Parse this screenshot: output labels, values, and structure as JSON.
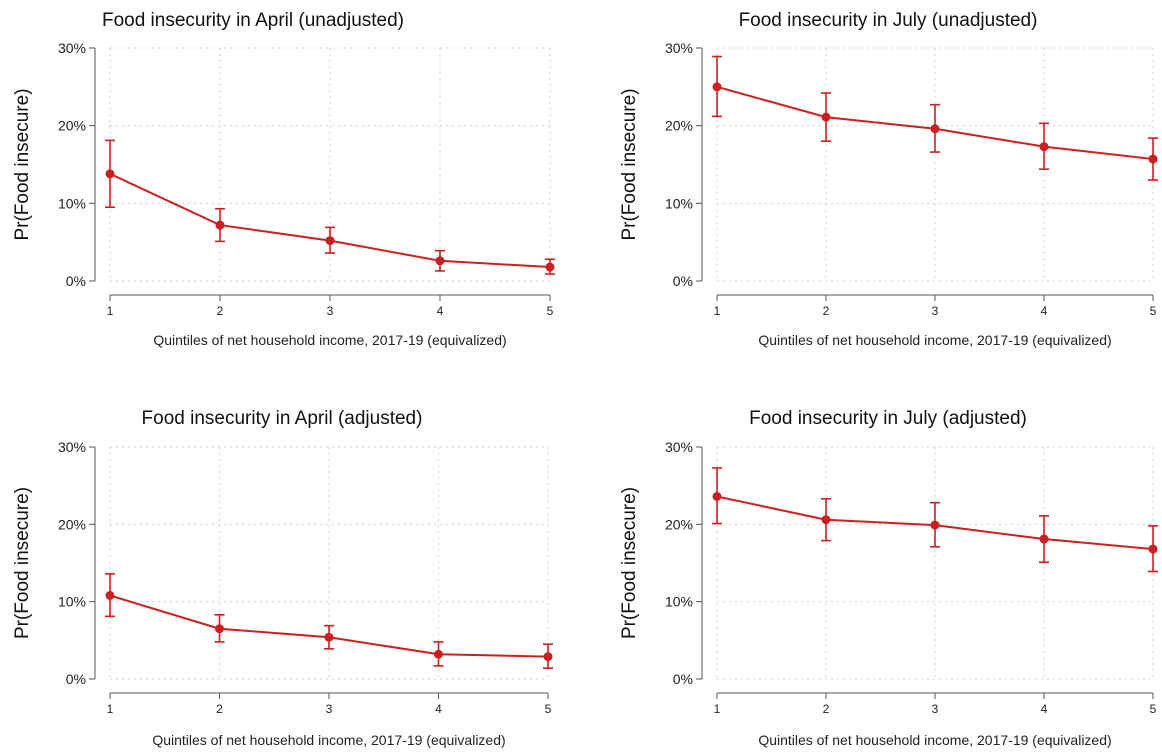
{
  "chart_data": [
    {
      "type": "line",
      "title": "Food insecurity in April (unadjusted)",
      "xlabel": "Quintiles of net household income, 2017-19 (equivalized)",
      "ylabel": "Pr(Food insecure)",
      "x": [
        1,
        2,
        3,
        4,
        5
      ],
      "x_tick_labels": [
        "1",
        "2",
        "3",
        "4",
        "5"
      ],
      "y_tick_values": [
        0,
        10,
        20,
        30
      ],
      "y_tick_labels": [
        "0%",
        "10%",
        "20%",
        "30%"
      ],
      "ylim": [
        0,
        30
      ],
      "grid": true,
      "series": [
        {
          "values": [
            13.8,
            7.2,
            5.2,
            2.6,
            1.8
          ],
          "ci_low": [
            9.5,
            5.1,
            3.6,
            1.3,
            0.9
          ],
          "ci_high": [
            18.1,
            9.3,
            6.9,
            3.9,
            2.8
          ]
        }
      ]
    },
    {
      "type": "line",
      "title": "Food insecurity in July (unadjusted)",
      "xlabel": "Quintiles of net household income, 2017-19 (equivalized)",
      "ylabel": "Pr(Food insecure)",
      "x": [
        1,
        2,
        3,
        4,
        5
      ],
      "x_tick_labels": [
        "1",
        "2",
        "3",
        "4",
        "5"
      ],
      "y_tick_values": [
        0,
        10,
        20,
        30
      ],
      "y_tick_labels": [
        "0%",
        "10%",
        "20%",
        "30%"
      ],
      "ylim": [
        0,
        30
      ],
      "grid": true,
      "series": [
        {
          "values": [
            25.0,
            21.1,
            19.6,
            17.3,
            15.7
          ],
          "ci_low": [
            21.2,
            18.0,
            16.6,
            14.4,
            13.0
          ],
          "ci_high": [
            28.9,
            24.2,
            22.7,
            20.3,
            18.4
          ]
        }
      ]
    },
    {
      "type": "line",
      "title": "Food insecurity in April (adjusted)",
      "xlabel": "Quintiles of net household income, 2017-19 (equivalized)",
      "ylabel": "Pr(Food insecure)",
      "x": [
        1,
        2,
        3,
        4,
        5
      ],
      "x_tick_labels": [
        "1",
        "2",
        "3",
        "4",
        "5"
      ],
      "y_tick_values": [
        0,
        10,
        20,
        30
      ],
      "y_tick_labels": [
        "0%",
        "10%",
        "20%",
        "30%"
      ],
      "ylim": [
        0,
        30
      ],
      "grid": true,
      "series": [
        {
          "values": [
            10.8,
            6.5,
            5.4,
            3.2,
            2.9
          ],
          "ci_low": [
            8.1,
            4.8,
            3.9,
            1.7,
            1.4
          ],
          "ci_high": [
            13.6,
            8.3,
            6.9,
            4.8,
            4.5
          ]
        }
      ]
    },
    {
      "type": "line",
      "title": "Food insecurity in July (adjusted)",
      "xlabel": "Quintiles of net household income, 2017-19 (equivalized)",
      "ylabel": "Pr(Food insecure)",
      "x": [
        1,
        2,
        3,
        4,
        5
      ],
      "x_tick_labels": [
        "1",
        "2",
        "3",
        "4",
        "5"
      ],
      "y_tick_values": [
        0,
        10,
        20,
        30
      ],
      "y_tick_labels": [
        "0%",
        "10%",
        "20%",
        "30%"
      ],
      "ylim": [
        0,
        30
      ],
      "grid": true,
      "series": [
        {
          "values": [
            23.6,
            20.6,
            19.9,
            18.1,
            16.8
          ],
          "ci_low": [
            20.1,
            17.9,
            17.1,
            15.1,
            13.9
          ],
          "ci_high": [
            27.3,
            23.3,
            22.8,
            21.1,
            19.8
          ]
        }
      ]
    }
  ],
  "colors": {
    "series": "#cc1f1f",
    "grid": "#d0d0d0",
    "axis": "#555555"
  }
}
